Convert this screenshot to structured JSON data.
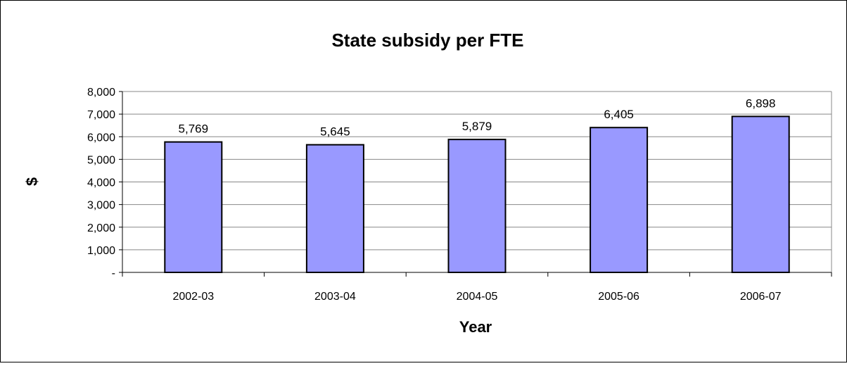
{
  "chart_data": {
    "type": "bar",
    "title": "State subsidy per FTE",
    "xlabel": "Year",
    "ylabel": "$",
    "categories": [
      "2002-03",
      "2003-04",
      "2004-05",
      "2005-06",
      "2006-07"
    ],
    "values": [
      5769,
      5645,
      5879,
      6405,
      6898
    ],
    "data_labels": [
      "5,769",
      "5,645",
      "5,879",
      "6,405",
      "6,898"
    ],
    "ylim": [
      0,
      8000
    ],
    "yticks": [
      0,
      1000,
      2000,
      3000,
      4000,
      5000,
      6000,
      7000,
      8000
    ],
    "ytick_labels": [
      "-",
      "1,000",
      "2,000",
      "3,000",
      "4,000",
      "5,000",
      "6,000",
      "7,000",
      "8,000"
    ],
    "grid": true,
    "legend": "none",
    "colors": {
      "bar_fill": "#9999ff",
      "bar_stroke": "#000000",
      "grid": "#888888",
      "frame": "#000000"
    }
  }
}
